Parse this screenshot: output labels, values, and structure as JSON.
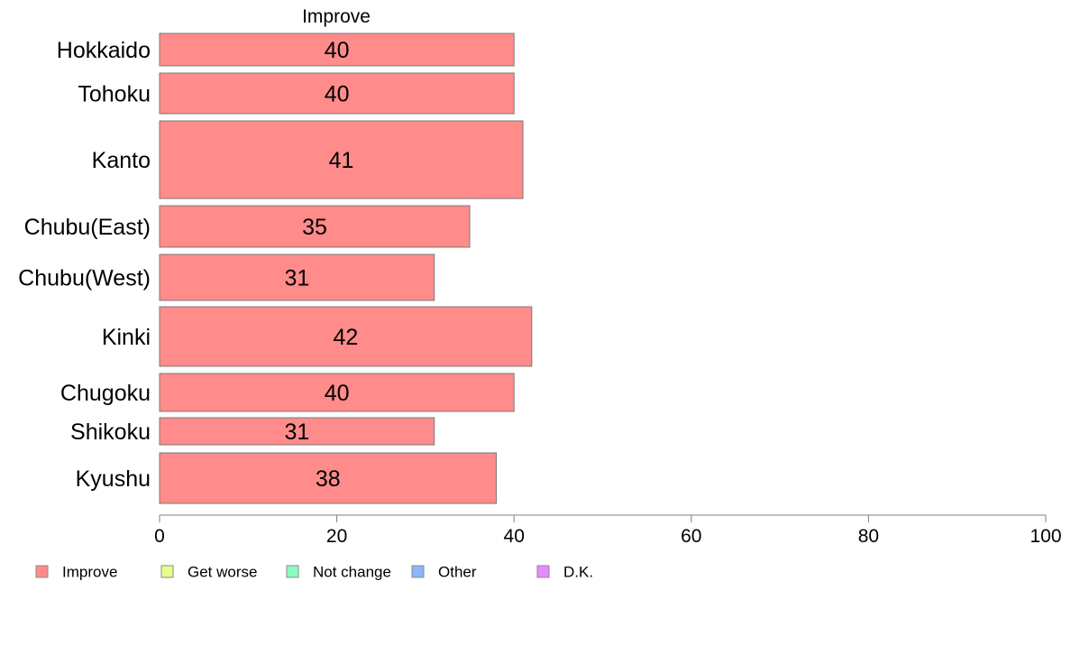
{
  "chart_data": {
    "type": "bar",
    "orientation": "horizontal",
    "title": "Improve",
    "categories": [
      "Hokkaido",
      "Tohoku",
      "Kanto",
      "Chubu(East)",
      "Chubu(West)",
      "Kinki",
      "Chugoku",
      "Shikoku",
      "Kyushu"
    ],
    "series": [
      {
        "name": "Improve",
        "values": [
          40,
          40,
          41,
          35,
          31,
          42,
          40,
          31,
          38
        ],
        "labels": [
          "40",
          "40",
          "41",
          "35",
          "31",
          "42",
          "40",
          "31",
          "38"
        ]
      }
    ],
    "xlim": [
      0,
      100
    ],
    "xticks": [
      "0",
      "20",
      "40",
      "60",
      "80",
      "100"
    ],
    "grid": false,
    "legend": {
      "placement": "bottom",
      "entries": [
        {
          "name": "Improve",
          "color": "#FF8B8B"
        },
        {
          "name": "Get worse",
          "color": "#E6FF8B"
        },
        {
          "name": "Not change",
          "color": "#8BFFBE"
        },
        {
          "name": "Other",
          "color": "#8BB7FF"
        },
        {
          "name": "D.K.",
          "color": "#E68BFF"
        }
      ]
    },
    "bar_color": "#FF8B8B",
    "bar_stroke": "#7a7a7a"
  }
}
